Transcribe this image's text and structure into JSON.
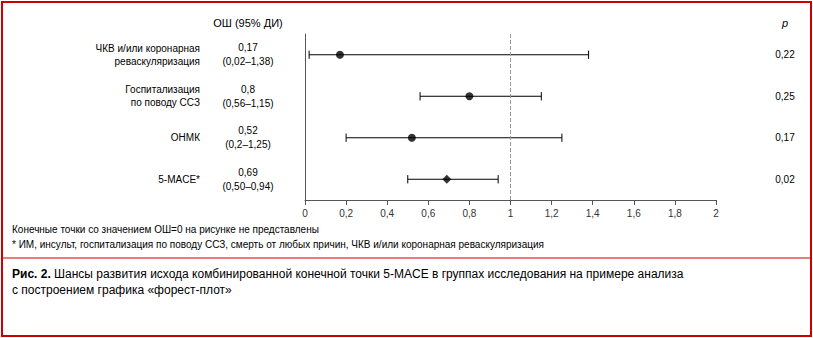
{
  "chart_data": {
    "type": "forest",
    "header_or": "ОШ (95% ДИ)",
    "header_p": "p",
    "categories": [
      "ЧКВ и/или коронарная\nреваскуляризация",
      "Госпитализация\nпо поводу ССЗ",
      "ОНМК",
      "5-MACE*"
    ],
    "values": [
      0.17,
      0.8,
      0.52,
      0.69
    ],
    "value_labels": [
      "0,17",
      "0,8",
      "0,52",
      "0,69"
    ],
    "ci_low": [
      0.02,
      0.56,
      0.2,
      0.5
    ],
    "ci_high": [
      1.38,
      1.15,
      1.25,
      0.94
    ],
    "ci_labels": [
      "(0,02–1,38)",
      "(0,56–1,15)",
      "(0,2–1,25)",
      "(0,50–0,94)"
    ],
    "p_labels": [
      "0,22",
      "0,25",
      "0,17",
      "0,02"
    ],
    "markers": [
      "circle",
      "circle",
      "circle",
      "diamond"
    ],
    "color": "#000000",
    "reference_line": {
      "x": 1.0,
      "color": "#999999",
      "line_style": "dashed"
    },
    "xlim": [
      0,
      2
    ],
    "xticks": [
      0,
      {
        "value": 0.2,
        "label": "0,2"
      },
      {
        "value": 0.4,
        "label": "0,4"
      },
      {
        "value": 0.6,
        "label": "0,6"
      },
      {
        "value": 0.8,
        "label": "0,8"
      },
      1,
      {
        "value": 1.2,
        "label": "1,2"
      },
      {
        "value": 1.4,
        "label": "1,4"
      },
      {
        "value": 1.6,
        "label": "1,6"
      },
      {
        "value": 1.8,
        "label": "1,8"
      },
      2
    ],
    "grid": false,
    "annotations": [
      "Конечные точки со значением ОШ=0 на рисунке не представлены",
      "* ИМ, инсульт, госпитализация по поводу ССЗ, смерть от любых причин, ЧКВ и/или коронарная реваскуляризация"
    ],
    "caption_bold": "Рис. 2.",
    "caption": " Шансы развития исхода комбинированной конечной точки 5-MACE в группах исследования на примере анализа\nс построением графика «форест-плот»",
    "border_color": "#cc0000"
  }
}
